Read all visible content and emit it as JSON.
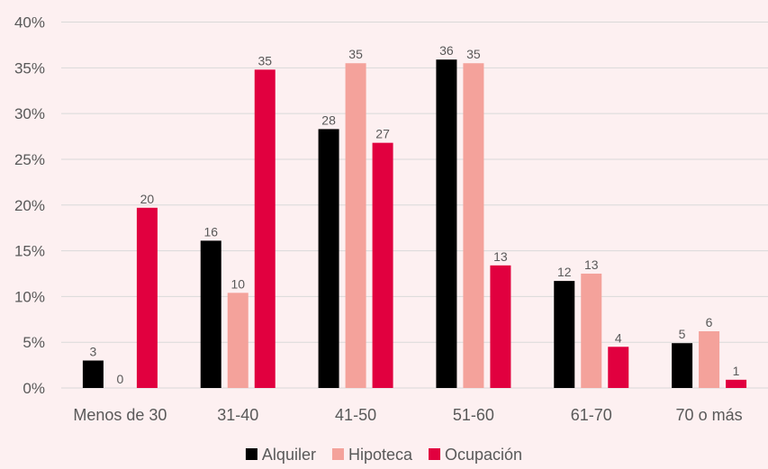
{
  "chart_data": {
    "type": "bar",
    "categories": [
      "Menos de 30",
      "31-40",
      "41-50",
      "51-60",
      "61-70",
      "70 o más"
    ],
    "series": [
      {
        "name": "Alquiler",
        "color": "#000000",
        "values": [
          3,
          16,
          28,
          36,
          12,
          5
        ],
        "labels": [
          "3",
          "16",
          "28",
          "36",
          "12",
          "5"
        ]
      },
      {
        "name": "Hipoteca",
        "color": "#F4A29B",
        "values": [
          0,
          10,
          35,
          35,
          13,
          6
        ],
        "labels": [
          "0",
          "10",
          "35",
          "35",
          "13",
          "6"
        ]
      },
      {
        "name": "Ocupación",
        "color": "#E1003F",
        "values": [
          20,
          35,
          27,
          13,
          4,
          1
        ],
        "labels": [
          "20",
          "35",
          "27",
          "13",
          "4",
          "1"
        ]
      }
    ],
    "bar_values_exact": [
      [
        3.0,
        16.1,
        28.3,
        35.9,
        11.7,
        4.9
      ],
      [
        0.0,
        10.4,
        35.5,
        35.5,
        12.5,
        6.2
      ],
      [
        19.7,
        34.8,
        26.8,
        13.4,
        4.5,
        0.9
      ]
    ],
    "yticks": [
      "0%",
      "5%",
      "10%",
      "15%",
      "20%",
      "25%",
      "30%",
      "35%",
      "40%"
    ],
    "ylim": [
      0,
      40
    ],
    "grid": true,
    "legend_position": "bottom",
    "title": "",
    "xlabel": "",
    "ylabel": ""
  },
  "colors": {
    "background": "#FDF0F1",
    "gridline": "#D9D9D9",
    "text": "#595959"
  }
}
